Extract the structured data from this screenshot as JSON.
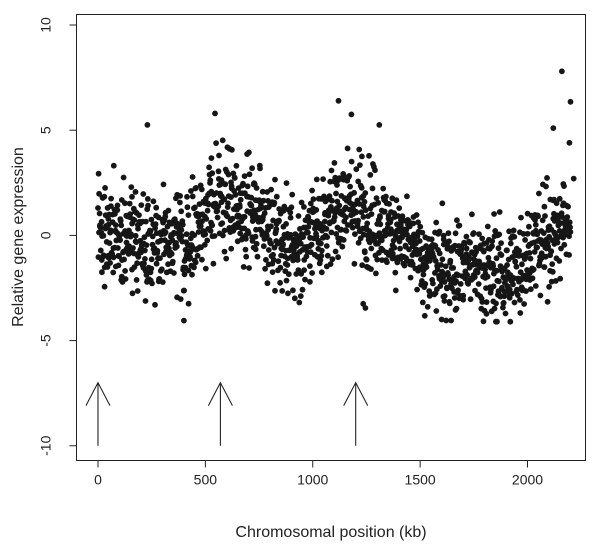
{
  "chart_data": {
    "type": "scatter",
    "title": "",
    "xlabel": "Chromosomal position (kb)",
    "ylabel": "Relative gene expression",
    "xlim": [
      -100,
      2270
    ],
    "ylim": [
      -10.7,
      10.5
    ],
    "xticks": [
      0,
      500,
      1000,
      1500,
      2000
    ],
    "yticks": [
      -10,
      -5,
      0,
      5,
      10
    ],
    "grid": false,
    "legend": "none",
    "point_color": "#161616",
    "arrow_positions_kb": [
      0,
      570,
      1200
    ],
    "arrow_y_range": [
      -10,
      -7.0
    ],
    "profile": [
      [
        0,
        0.3
      ],
      [
        100,
        0.1
      ],
      [
        200,
        -0.3
      ],
      [
        300,
        -0.4
      ],
      [
        400,
        -0.6
      ],
      [
        500,
        1.1
      ],
      [
        570,
        1.6
      ],
      [
        650,
        1.4
      ],
      [
        750,
        1.1
      ],
      [
        850,
        -0.3
      ],
      [
        930,
        -0.8
      ],
      [
        1000,
        0.3
      ],
      [
        1080,
        0.6
      ],
      [
        1150,
        1.7
      ],
      [
        1220,
        1.1
      ],
      [
        1300,
        0.7
      ],
      [
        1400,
        0.0
      ],
      [
        1500,
        -1.2
      ],
      [
        1600,
        -1.6
      ],
      [
        1700,
        -1.3
      ],
      [
        1800,
        -1.6
      ],
      [
        1900,
        -1.9
      ],
      [
        2000,
        -0.8
      ],
      [
        2100,
        -0.1
      ],
      [
        2200,
        0.5
      ]
    ],
    "n_points": 1500,
    "outliers": [
      [
        2160,
        7.8
      ],
      [
        2200,
        6.35
      ],
      [
        2195,
        4.4
      ],
      [
        2120,
        5.1
      ],
      [
        2215,
        2.7
      ],
      [
        230,
        5.25
      ],
      [
        545,
        5.8
      ],
      [
        1120,
        6.4
      ],
      [
        1180,
        5.75
      ],
      [
        1310,
        5.25
      ],
      [
        1245,
        -3.45
      ],
      [
        1235,
        -3.25
      ],
      [
        400,
        -4.05
      ],
      [
        1920,
        -4.1
      ],
      [
        1600,
        -4.0
      ]
    ]
  }
}
